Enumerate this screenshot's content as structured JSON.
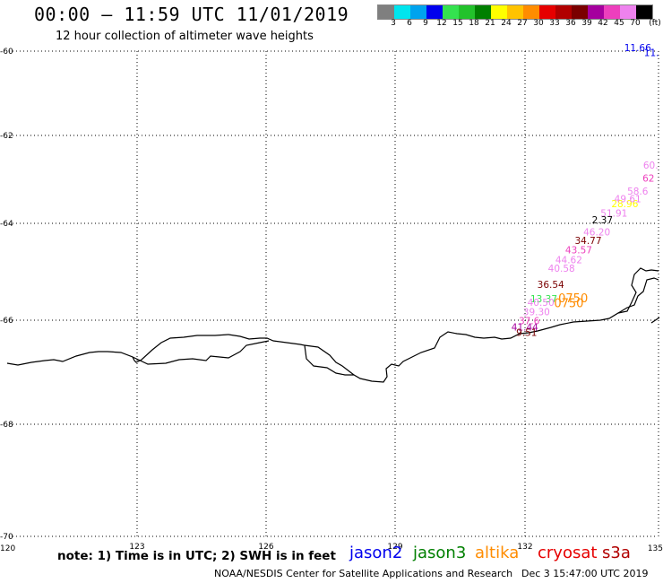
{
  "header": {
    "title": "00:00 – 11:59 UTC 11/01/2019",
    "subtitle": "12 hour collection of altimeter wave heights"
  },
  "legend": {
    "colors": [
      "#7f7f7f",
      "#00e5ee",
      "#00a3ee",
      "#0000ee",
      "#34e24f",
      "#22c22b",
      "#007f00",
      "#ffff00",
      "#ffc300",
      "#ff8c00",
      "#e60000",
      "#b10000",
      "#7a0000",
      "#a5009e",
      "#ed3fbd",
      "#ee82ee",
      "#000000"
    ],
    "labels": [
      "3",
      "6",
      "9",
      "12",
      "15",
      "18",
      "21",
      "24",
      "27",
      "30",
      "33",
      "36",
      "39",
      "42",
      "45",
      "70",
      "(ft)"
    ]
  },
  "map": {
    "lat_ticks": [
      "-60",
      "-62",
      "-64",
      "-66",
      "-68",
      "-70"
    ],
    "lon_ticks": [
      "120",
      "123",
      "126",
      "129",
      "132",
      "135"
    ]
  },
  "observations": [
    {
      "text": "11.66",
      "color": "#0000ee",
      "lon": 134.6,
      "lat": -60.0
    },
    {
      "text": "11.",
      "color": "#0000ee",
      "lon": 134.92,
      "lat": -60.12
    },
    {
      "text": "60.",
      "color": "#ee82ee",
      "lon": 134.9,
      "lat": -62.75
    },
    {
      "text": "62",
      "color": "#ed3fbd",
      "lon": 134.85,
      "lat": -63.05
    },
    {
      "text": "58.6",
      "color": "#ee82ee",
      "lon": 134.6,
      "lat": -63.35
    },
    {
      "text": "28.96",
      "color": "#ffff00",
      "lon": 134.3,
      "lat": -63.63
    },
    {
      "text": "49.61",
      "color": "#ee82ee",
      "lon": 134.37,
      "lat": -63.52
    },
    {
      "text": "51.91",
      "color": "#ee82ee",
      "lon": 134.05,
      "lat": -63.85
    },
    {
      "text": "2.37",
      "color": "#000000",
      "lon": 133.78,
      "lat": -64.0
    },
    {
      "text": "46.20",
      "color": "#ee82ee",
      "lon": 133.65,
      "lat": -64.25
    },
    {
      "text": "34.77",
      "color": "#7a0000",
      "lon": 133.45,
      "lat": -64.43
    },
    {
      "text": "43.57",
      "color": "#ed3fbd",
      "lon": 133.23,
      "lat": -64.62
    },
    {
      "text": "44.62",
      "color": "#ee82ee",
      "lon": 133.0,
      "lat": -64.82
    },
    {
      "text": "40.58",
      "color": "#ee82ee",
      "lon": 132.83,
      "lat": -65.0
    },
    {
      "text": "36.54",
      "color": "#7a0000",
      "lon": 132.58,
      "lat": -65.33
    },
    {
      "text": "13.37",
      "color": "#34e24f",
      "lon": 132.42,
      "lat": -65.63
    },
    {
      "text": "40.50",
      "color": "#ee82ee",
      "lon": 132.35,
      "lat": -65.7
    },
    {
      "text": "0750",
      "color": "#ff8c00",
      "lon": 133.1,
      "lat": -65.63
    },
    {
      "text": "0750",
      "color": "#ff8c00",
      "lon": 133.0,
      "lat": -65.73
    },
    {
      "text": "39.30",
      "color": "#ee82ee",
      "lon": 132.25,
      "lat": -65.9
    },
    {
      "text": "37.6",
      "color": "#ed3fbd",
      "lon": 132.08,
      "lat": -66.08
    },
    {
      "text": "41.44",
      "color": "#a5009e",
      "lon": 131.98,
      "lat": -66.2
    },
    {
      "text": "9.51",
      "color": "#7a0000",
      "lon": 132.02,
      "lat": -66.3
    }
  ],
  "footer": {
    "note": "note: 1) Time is in UTC; 2) SWH is in feet",
    "satellites": [
      {
        "name": "jason2",
        "color": "#0000ee"
      },
      {
        "name": "jason3",
        "color": "#007f00"
      },
      {
        "name": "altika",
        "color": "#ff8c00"
      },
      {
        "name": "cryosat",
        "color": "#e60000"
      },
      {
        "name": "s3a",
        "color": "#b10000"
      }
    ],
    "credit": "NOAA/NESDIS Center for Satellite Applications and Research",
    "timestamp": "Dec  3 15:47:00 UTC 2019"
  }
}
